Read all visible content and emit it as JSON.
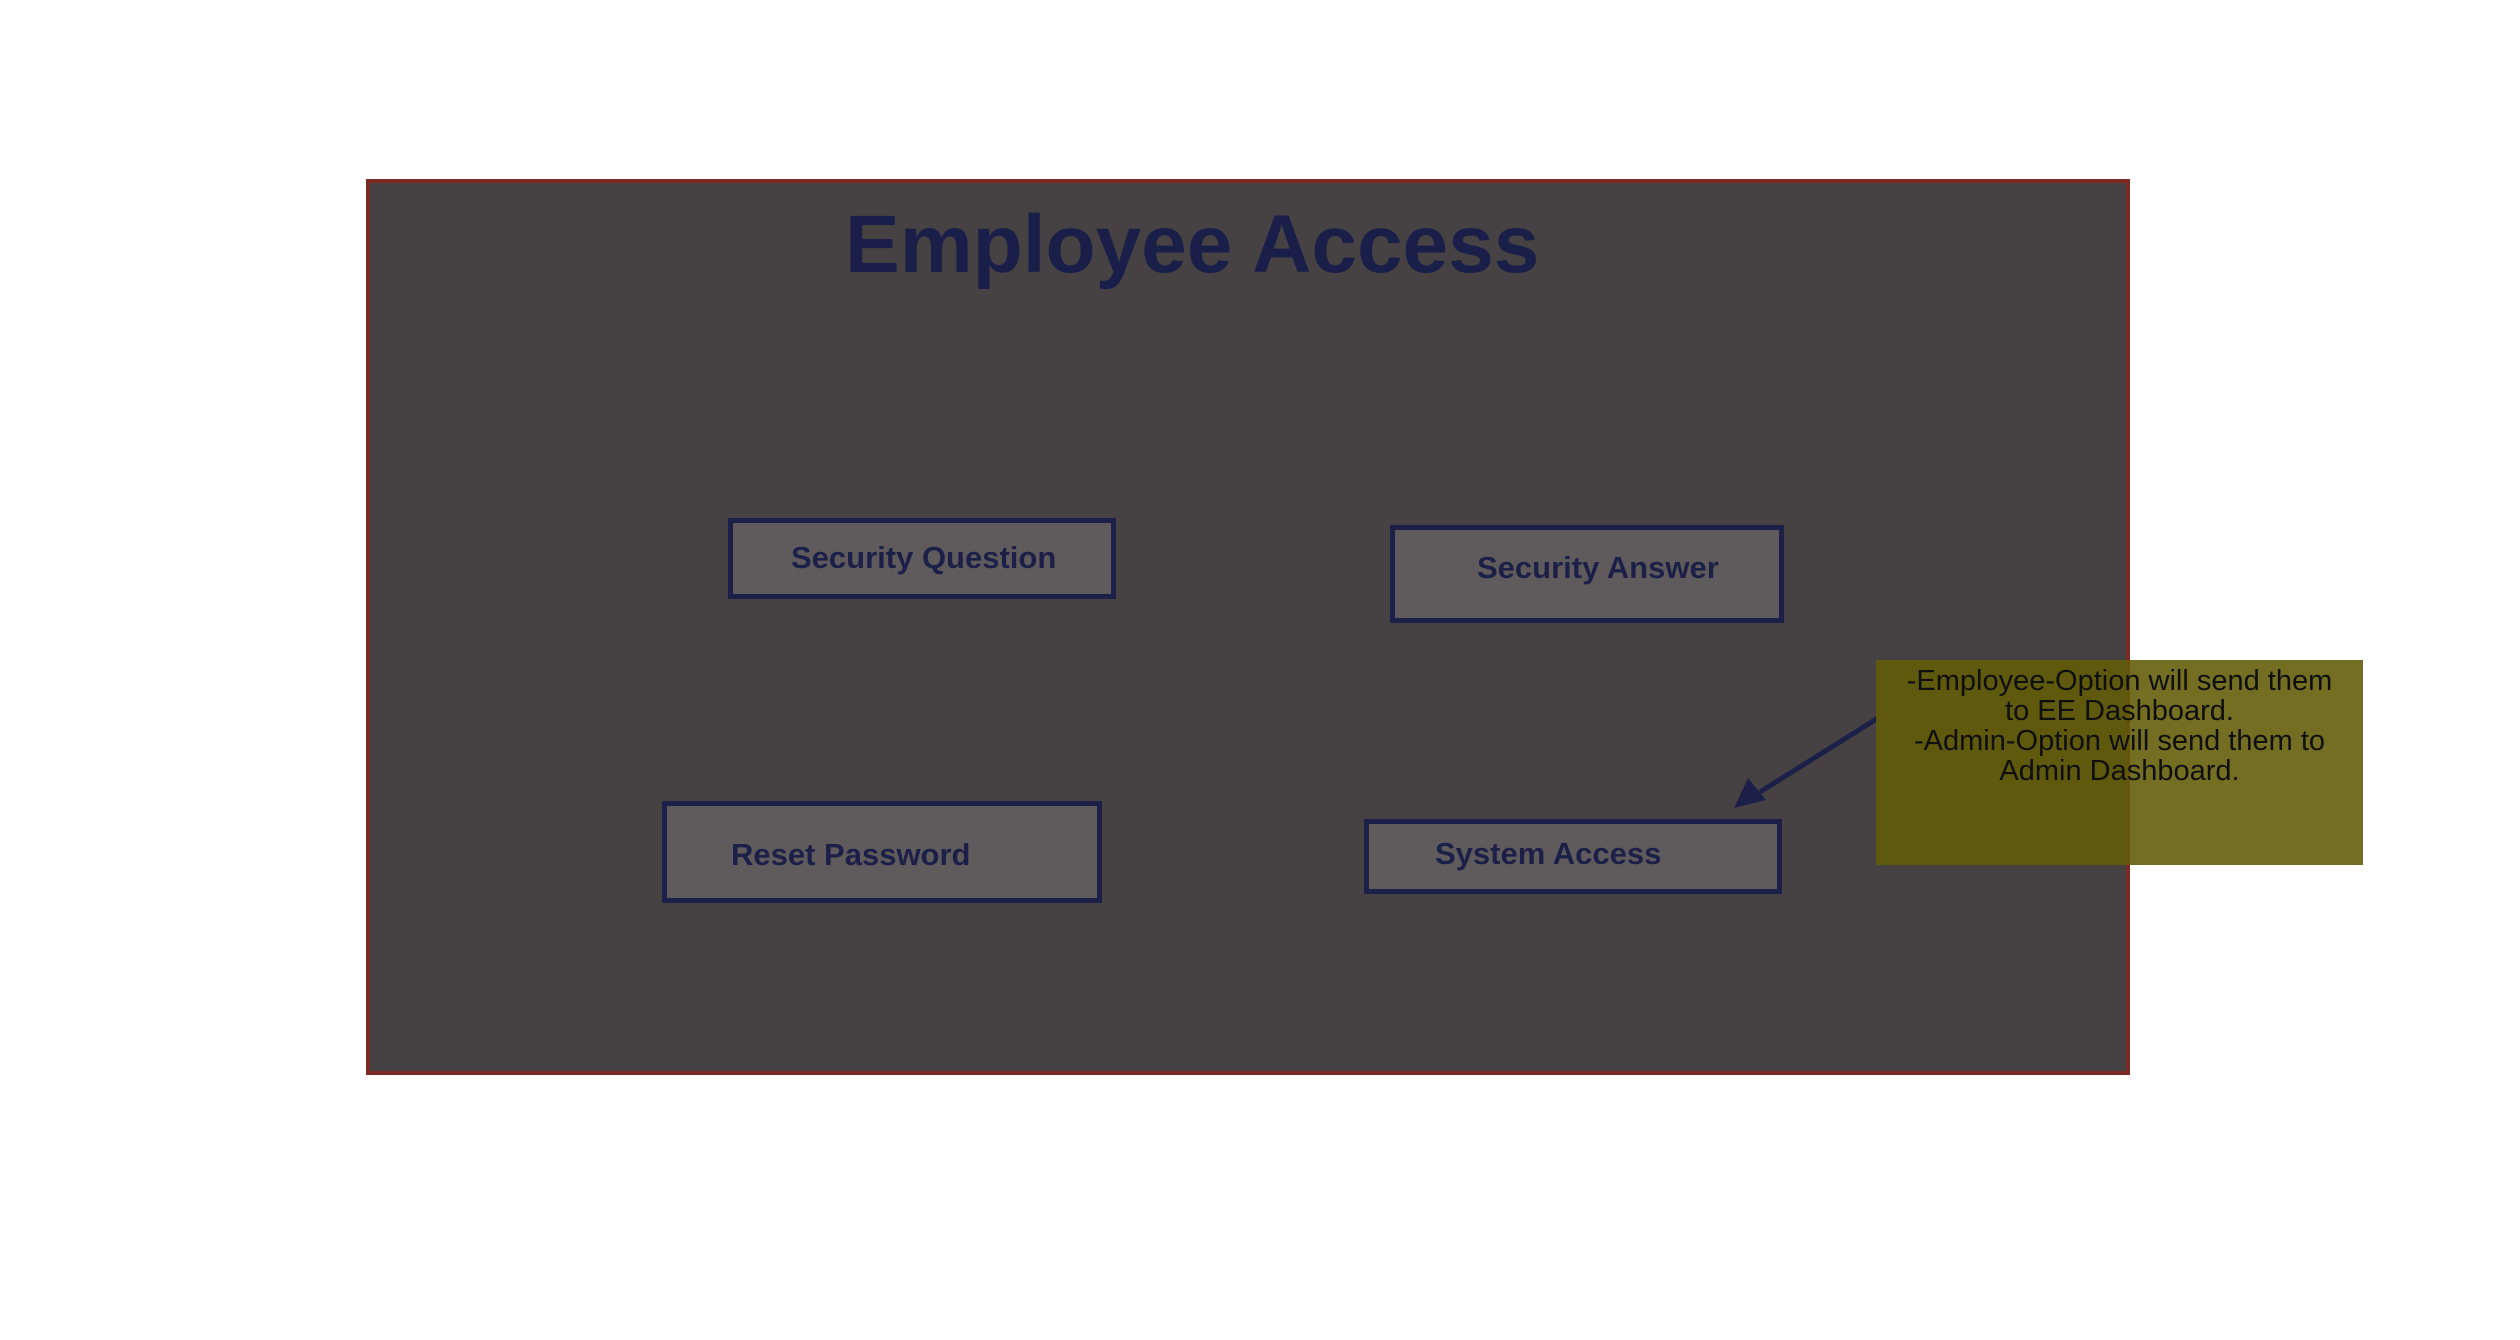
{
  "title": "Employee Access",
  "boxes": {
    "security_question": "Security Question",
    "security_answer": "Security Answer",
    "reset_password": "Reset Password",
    "system_access": "System Access"
  },
  "note": {
    "line1": "-Employee-Option will send them",
    "line2": "to EE Dashboard.",
    "line3": "-Admin-Option will send them to",
    "line4": "Admin Dashboard."
  },
  "colors": {
    "frame_fill": "#464142",
    "frame_border": "#7a2a22",
    "box_fill": "#5f5b5c",
    "ink": "#1c2048",
    "note_fill": "#625c07"
  }
}
